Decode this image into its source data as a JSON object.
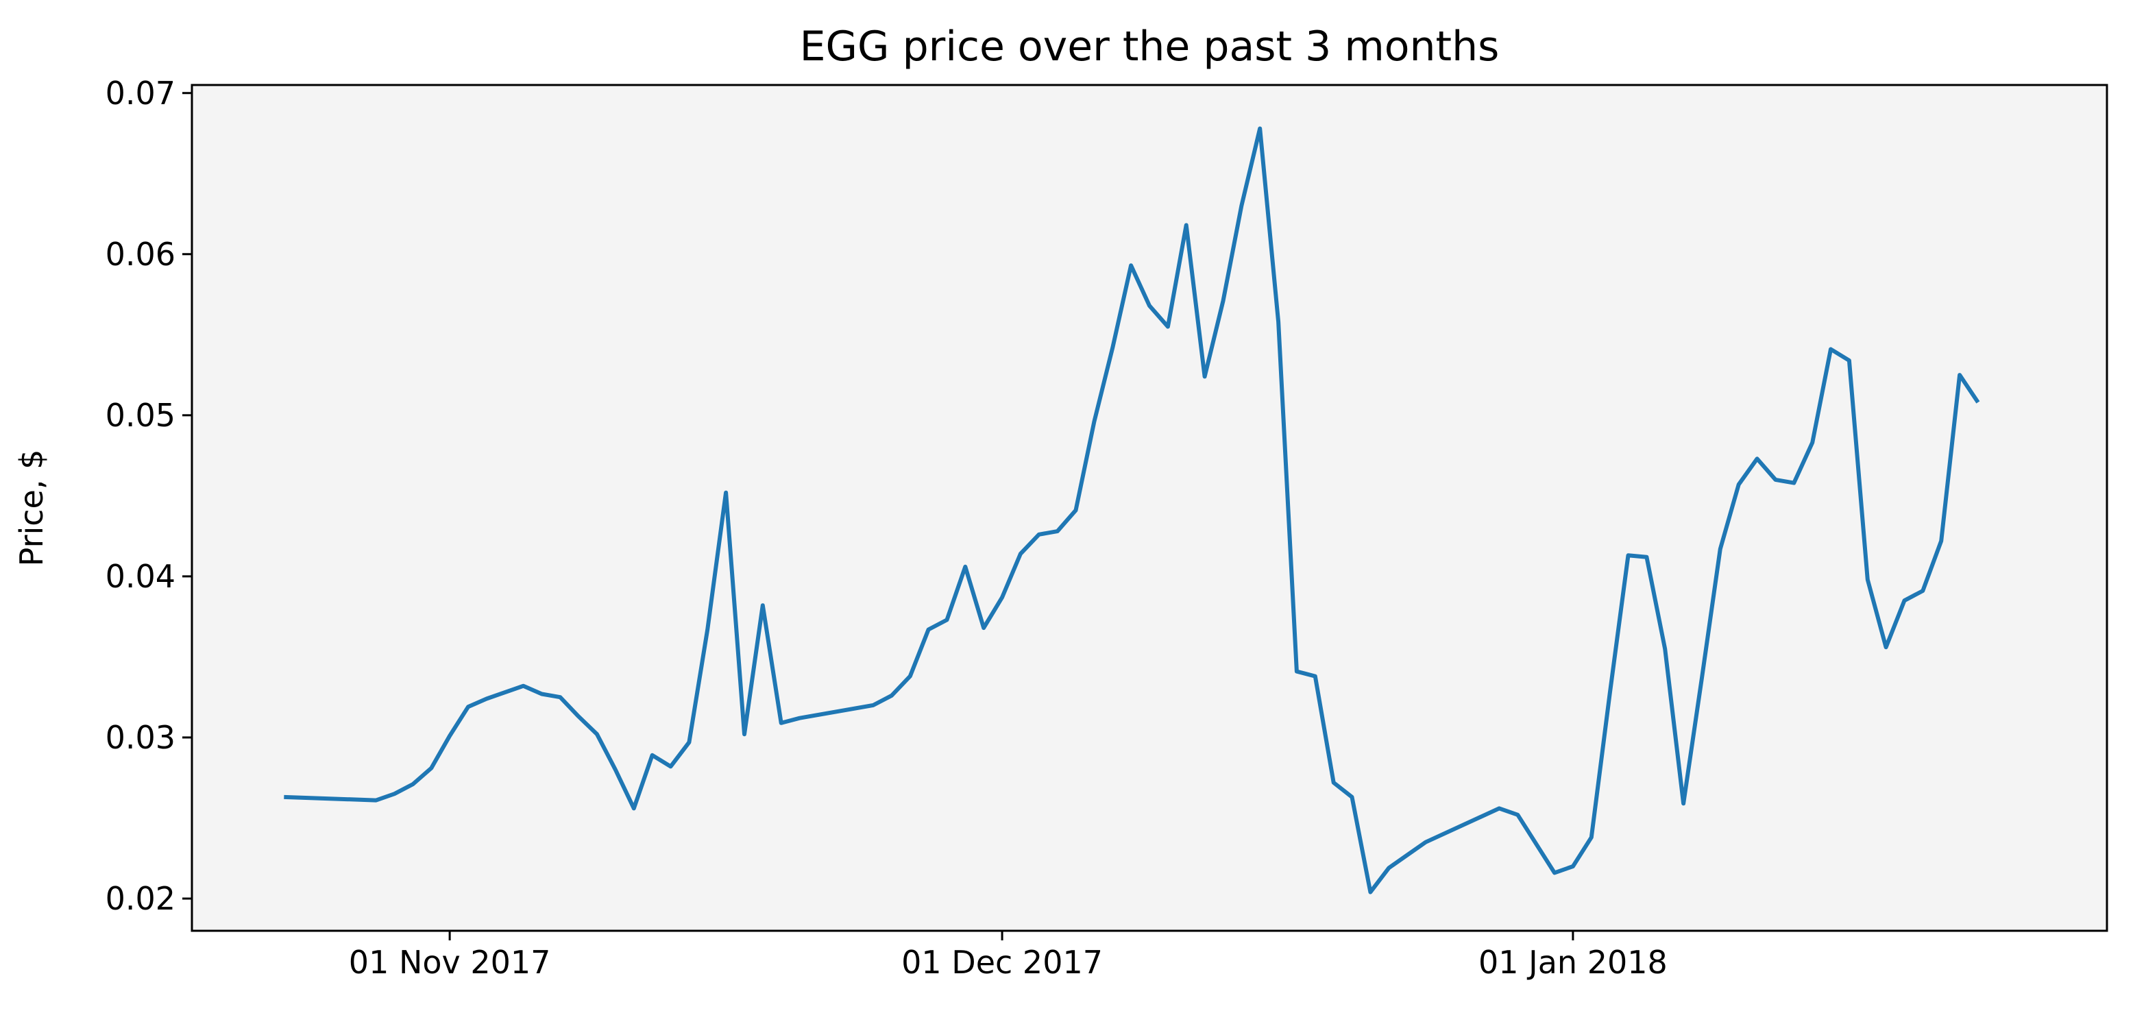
{
  "chart_data": {
    "type": "line",
    "title": "EGG price over the past 3 months",
    "xlabel": "",
    "ylabel": "Price, $",
    "xlim": [
      "2017-10-18",
      "2018-01-30"
    ],
    "ylim": [
      0.018,
      0.0705
    ],
    "x_ticks": [
      {
        "date": "2017-11-01",
        "label": "01 Nov 2017"
      },
      {
        "date": "2017-12-01",
        "label": "01 Dec 2017"
      },
      {
        "date": "2018-01-01",
        "label": "01 Jan 2018"
      }
    ],
    "y_ticks": [
      {
        "value": 0.02,
        "label": "0.02"
      },
      {
        "value": 0.03,
        "label": "0.03"
      },
      {
        "value": 0.04,
        "label": "0.04"
      },
      {
        "value": 0.05,
        "label": "0.05"
      },
      {
        "value": 0.06,
        "label": "0.06"
      },
      {
        "value": 0.07,
        "label": "0.07"
      }
    ],
    "grid": false,
    "colors": {
      "line": "#1f77b4",
      "plot_background": "#f4f4f4",
      "axes": "#000000"
    },
    "series": [
      {
        "x": [
          "2017-10-23",
          "2017-10-28",
          "2017-10-29",
          "2017-10-30",
          "2017-10-31",
          "2017-11-01",
          "2017-11-02",
          "2017-11-03",
          "2017-11-05",
          "2017-11-06",
          "2017-11-07",
          "2017-11-08",
          "2017-11-09",
          "2017-11-10",
          "2017-11-11",
          "2017-11-12",
          "2017-11-13",
          "2017-11-14",
          "2017-11-15",
          "2017-11-16",
          "2017-11-17",
          "2017-11-18",
          "2017-11-19",
          "2017-11-20",
          "2017-11-24",
          "2017-11-25",
          "2017-11-26",
          "2017-11-27",
          "2017-11-28",
          "2017-11-29",
          "2017-11-30",
          "2017-12-01",
          "2017-12-02",
          "2017-12-03",
          "2017-12-04",
          "2017-12-05",
          "2017-12-06",
          "2017-12-07",
          "2017-12-08",
          "2017-12-09",
          "2017-12-10",
          "2017-12-11",
          "2017-12-12",
          "2017-12-13",
          "2017-12-14",
          "2017-12-15",
          "2017-12-16",
          "2017-12-17",
          "2017-12-18",
          "2017-12-19",
          "2017-12-20",
          "2017-12-21",
          "2017-12-22",
          "2017-12-23",
          "2017-12-24",
          "2017-12-28",
          "2017-12-29",
          "2017-12-31",
          "2018-01-01",
          "2018-01-02",
          "2018-01-03",
          "2018-01-04",
          "2018-01-05",
          "2018-01-06",
          "2018-01-07",
          "2018-01-08",
          "2018-01-09",
          "2018-01-10",
          "2018-01-11",
          "2018-01-12",
          "2018-01-13",
          "2018-01-14",
          "2018-01-15",
          "2018-01-16",
          "2018-01-17",
          "2018-01-18",
          "2018-01-19",
          "2018-01-20",
          "2018-01-21",
          "2018-01-22",
          "2018-01-23"
        ],
        "y": [
          0.0263,
          0.0261,
          0.0265,
          0.0271,
          0.0281,
          0.0301,
          0.0319,
          0.0324,
          0.0332,
          0.0327,
          0.0325,
          0.0313,
          0.0302,
          0.028,
          0.0256,
          0.0289,
          0.0282,
          0.0297,
          0.0367,
          0.0452,
          0.0302,
          0.0382,
          0.0309,
          0.0312,
          0.032,
          0.0326,
          0.0338,
          0.0367,
          0.0373,
          0.0406,
          0.0368,
          0.0387,
          0.0414,
          0.0426,
          0.0428,
          0.0441,
          0.0496,
          0.0542,
          0.0593,
          0.0568,
          0.0555,
          0.0618,
          0.0524,
          0.0571,
          0.063,
          0.0678,
          0.0558,
          0.0341,
          0.0338,
          0.0272,
          0.0263,
          0.0204,
          0.0219,
          0.0227,
          0.0235,
          0.0256,
          0.0252,
          0.0216,
          0.022,
          0.0238,
          0.0327,
          0.0413,
          0.0412,
          0.0355,
          0.0259,
          0.0337,
          0.0417,
          0.0457,
          0.0473,
          0.046,
          0.0458,
          0.0483,
          0.0541,
          0.0534,
          0.0398,
          0.0356,
          0.0385,
          0.0391,
          0.0422,
          0.0525,
          0.0508
        ]
      }
    ]
  }
}
